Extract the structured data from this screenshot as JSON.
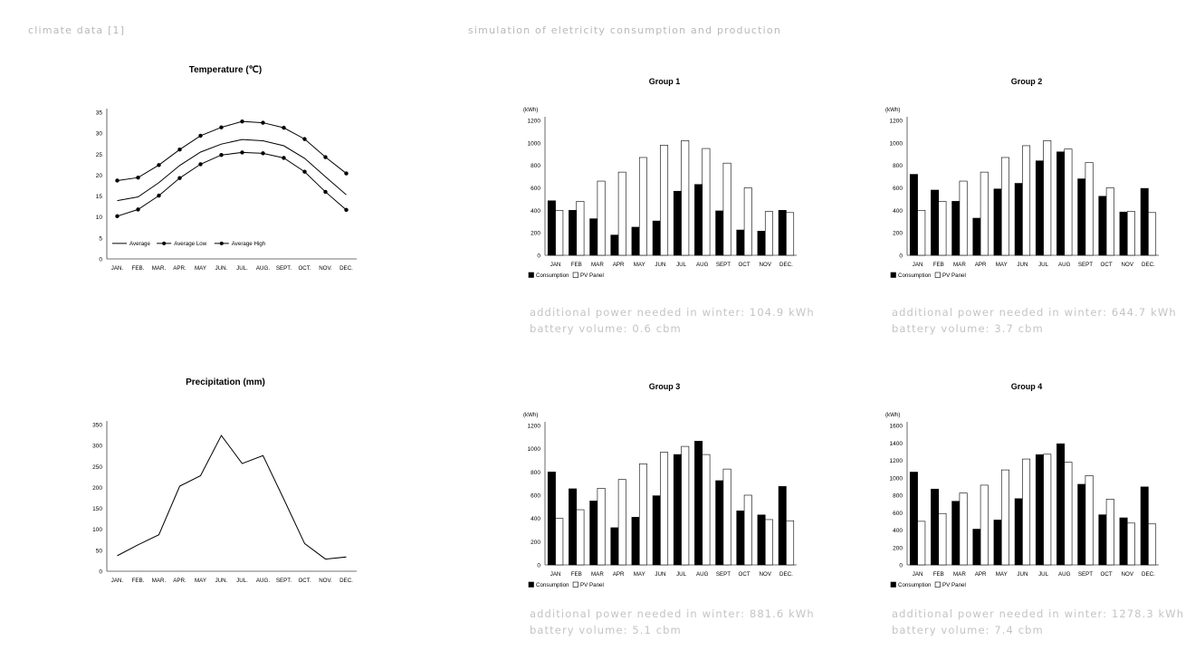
{
  "headings": {
    "left": "climate data [1]",
    "right": "simulation of eletricity consumption and production"
  },
  "months_climate": [
    "JAN.",
    "FEB.",
    "MAR.",
    "APR.",
    "MAY",
    "JUN.",
    "JUL.",
    "AUG.",
    "SEPT.",
    "OCT.",
    "NOV.",
    "DEC."
  ],
  "months_power": [
    "JAN",
    "FEB",
    "MAR",
    "APR",
    "MAY",
    "JUN",
    "JUL",
    "AUG",
    "SEPT",
    "OCT",
    "NOV",
    "DEC."
  ],
  "chart_data": [
    {
      "id": "temp",
      "type": "line",
      "title": "Temperature (℃)",
      "ylim": [
        0,
        35
      ],
      "yticks": [
        0,
        5,
        10,
        15,
        20,
        25,
        30,
        35
      ],
      "legend_position": "bottom-left-inside",
      "series": [
        {
          "name": "Average",
          "marker": false,
          "values": [
            13.9,
            14.8,
            18.2,
            22.3,
            25.5,
            27.4,
            28.5,
            28.2,
            27.0,
            24.0,
            19.6,
            15.3
          ]
        },
        {
          "name": "Average Low",
          "marker": true,
          "values": [
            10.2,
            11.8,
            15.1,
            19.3,
            22.6,
            24.8,
            25.4,
            25.2,
            24.1,
            20.8,
            16.0,
            11.7
          ]
        },
        {
          "name": "Average High",
          "marker": true,
          "values": [
            18.7,
            19.4,
            22.4,
            26.1,
            29.4,
            31.4,
            32.8,
            32.5,
            31.3,
            28.6,
            24.3,
            20.4
          ]
        }
      ]
    },
    {
      "id": "precip",
      "type": "line",
      "title": "Precipitation (mm)",
      "ylim": [
        0,
        350
      ],
      "yticks": [
        0,
        50,
        100,
        150,
        200,
        250,
        300,
        350
      ],
      "series": [
        {
          "values": [
            37,
            63,
            87,
            203,
            228,
            324,
            257,
            276,
            172,
            66,
            29,
            34
          ]
        }
      ]
    },
    {
      "id": "g1",
      "type": "bar",
      "title": "Group 1",
      "unit": "(kWh)",
      "ylim": [
        0,
        1200
      ],
      "yticks": [
        0,
        200,
        400,
        600,
        800,
        1000,
        1200
      ],
      "series": [
        {
          "name": "Consumption",
          "color": "#000000",
          "values": [
            485,
            400,
            325,
            180,
            250,
            305,
            570,
            630,
            395,
            225,
            215,
            400
          ]
        },
        {
          "name": "PV Panel",
          "color": "#ffffff",
          "values": [
            400,
            480,
            660,
            740,
            870,
            980,
            1020,
            950,
            820,
            600,
            390,
            380
          ]
        }
      ]
    },
    {
      "id": "g2",
      "type": "bar",
      "title": "Group 2",
      "unit": "(kWh)",
      "ylim": [
        0,
        1200
      ],
      "yticks": [
        0,
        200,
        400,
        600,
        800,
        1000,
        1200
      ],
      "series": [
        {
          "name": "Consumption",
          "color": "#000000",
          "values": [
            720,
            580,
            480,
            330,
            590,
            640,
            840,
            920,
            680,
            525,
            385,
            595
          ]
        },
        {
          "name": "PV Panel",
          "color": "#ffffff",
          "values": [
            400,
            480,
            660,
            740,
            870,
            975,
            1020,
            945,
            825,
            600,
            390,
            380
          ]
        }
      ]
    },
    {
      "id": "g3",
      "type": "bar",
      "title": "Group 3",
      "unit": "(kWh)",
      "ylim": [
        0,
        1200
      ],
      "yticks": [
        0,
        200,
        400,
        600,
        800,
        1000,
        1200
      ],
      "series": [
        {
          "name": "Consumption",
          "color": "#000000",
          "values": [
            800,
            655,
            550,
            320,
            410,
            595,
            950,
            1065,
            725,
            465,
            430,
            675
          ]
        },
        {
          "name": "PV Panel",
          "color": "#ffffff",
          "values": [
            400,
            475,
            660,
            735,
            870,
            970,
            1020,
            950,
            825,
            600,
            390,
            380
          ]
        }
      ]
    },
    {
      "id": "g4",
      "type": "bar",
      "title": "Group 4",
      "unit": "(kWh)",
      "ylim": [
        0,
        1600
      ],
      "yticks": [
        0,
        200,
        400,
        600,
        800,
        1000,
        1200,
        1400,
        1600
      ],
      "series": [
        {
          "name": "Consumption",
          "color": "#000000",
          "values": [
            1065,
            870,
            730,
            410,
            515,
            760,
            1265,
            1390,
            925,
            575,
            540,
            895
          ]
        },
        {
          "name": "PV Panel",
          "color": "#ffffff",
          "values": [
            500,
            590,
            825,
            915,
            1090,
            1215,
            1270,
            1180,
            1025,
            755,
            480,
            470
          ]
        }
      ]
    }
  ],
  "notes": {
    "g1": {
      "power": "additional power needed in winter: 104.9 kWh",
      "battery": "battery volume: 0.6 cbm"
    },
    "g2": {
      "power": "additional power needed in winter: 644.7 kWh",
      "battery": "battery volume: 3.7 cbm"
    },
    "g3": {
      "power": "additional power needed in winter: 881.6 kWh",
      "battery": "battery volume: 5.1 cbm"
    },
    "g4": {
      "power": "additional power needed in winter: 1278.3 kWh",
      "battery": "battery volume: 7.4 cbm"
    }
  }
}
